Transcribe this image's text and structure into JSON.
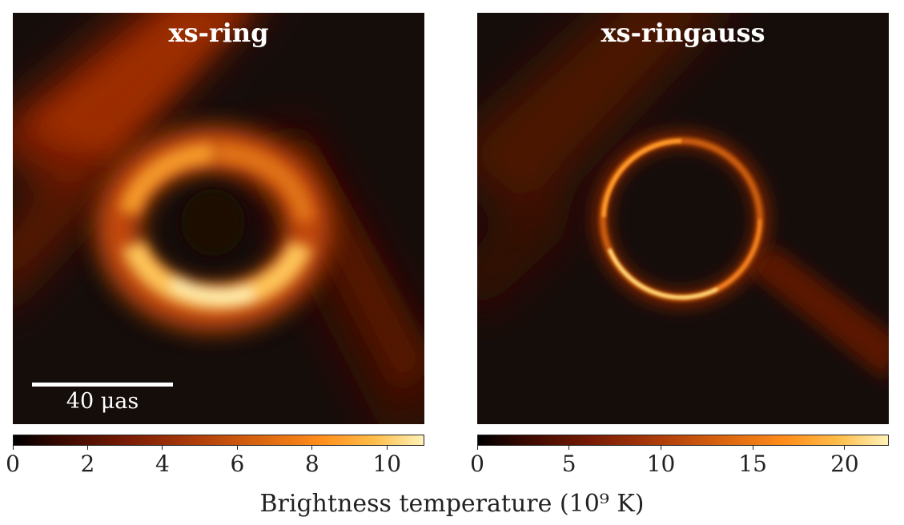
{
  "panels": {
    "left": {
      "title": "xs-ring",
      "scale_bar_label": "40 μas"
    },
    "right": {
      "title": "xs-ringauss"
    }
  },
  "colorbars": {
    "left": {
      "ticks": [
        "0",
        "2",
        "4",
        "6",
        "8",
        "10"
      ],
      "tick_values": [
        0,
        2,
        4,
        6,
        8,
        10
      ],
      "range": [
        0,
        11
      ]
    },
    "right": {
      "ticks": [
        "0",
        "5",
        "10",
        "15",
        "20"
      ],
      "tick_values": [
        0,
        5,
        10,
        15,
        20
      ],
      "range": [
        0,
        22.4
      ]
    },
    "label": "Brightness temperature (10⁹ K)"
  },
  "colormap": [
    "#000000",
    "#3b0900",
    "#7a1c04",
    "#b03e0a",
    "#e06a10",
    "#ff8e1c",
    "#ffbd4a",
    "#fff2b8"
  ]
}
